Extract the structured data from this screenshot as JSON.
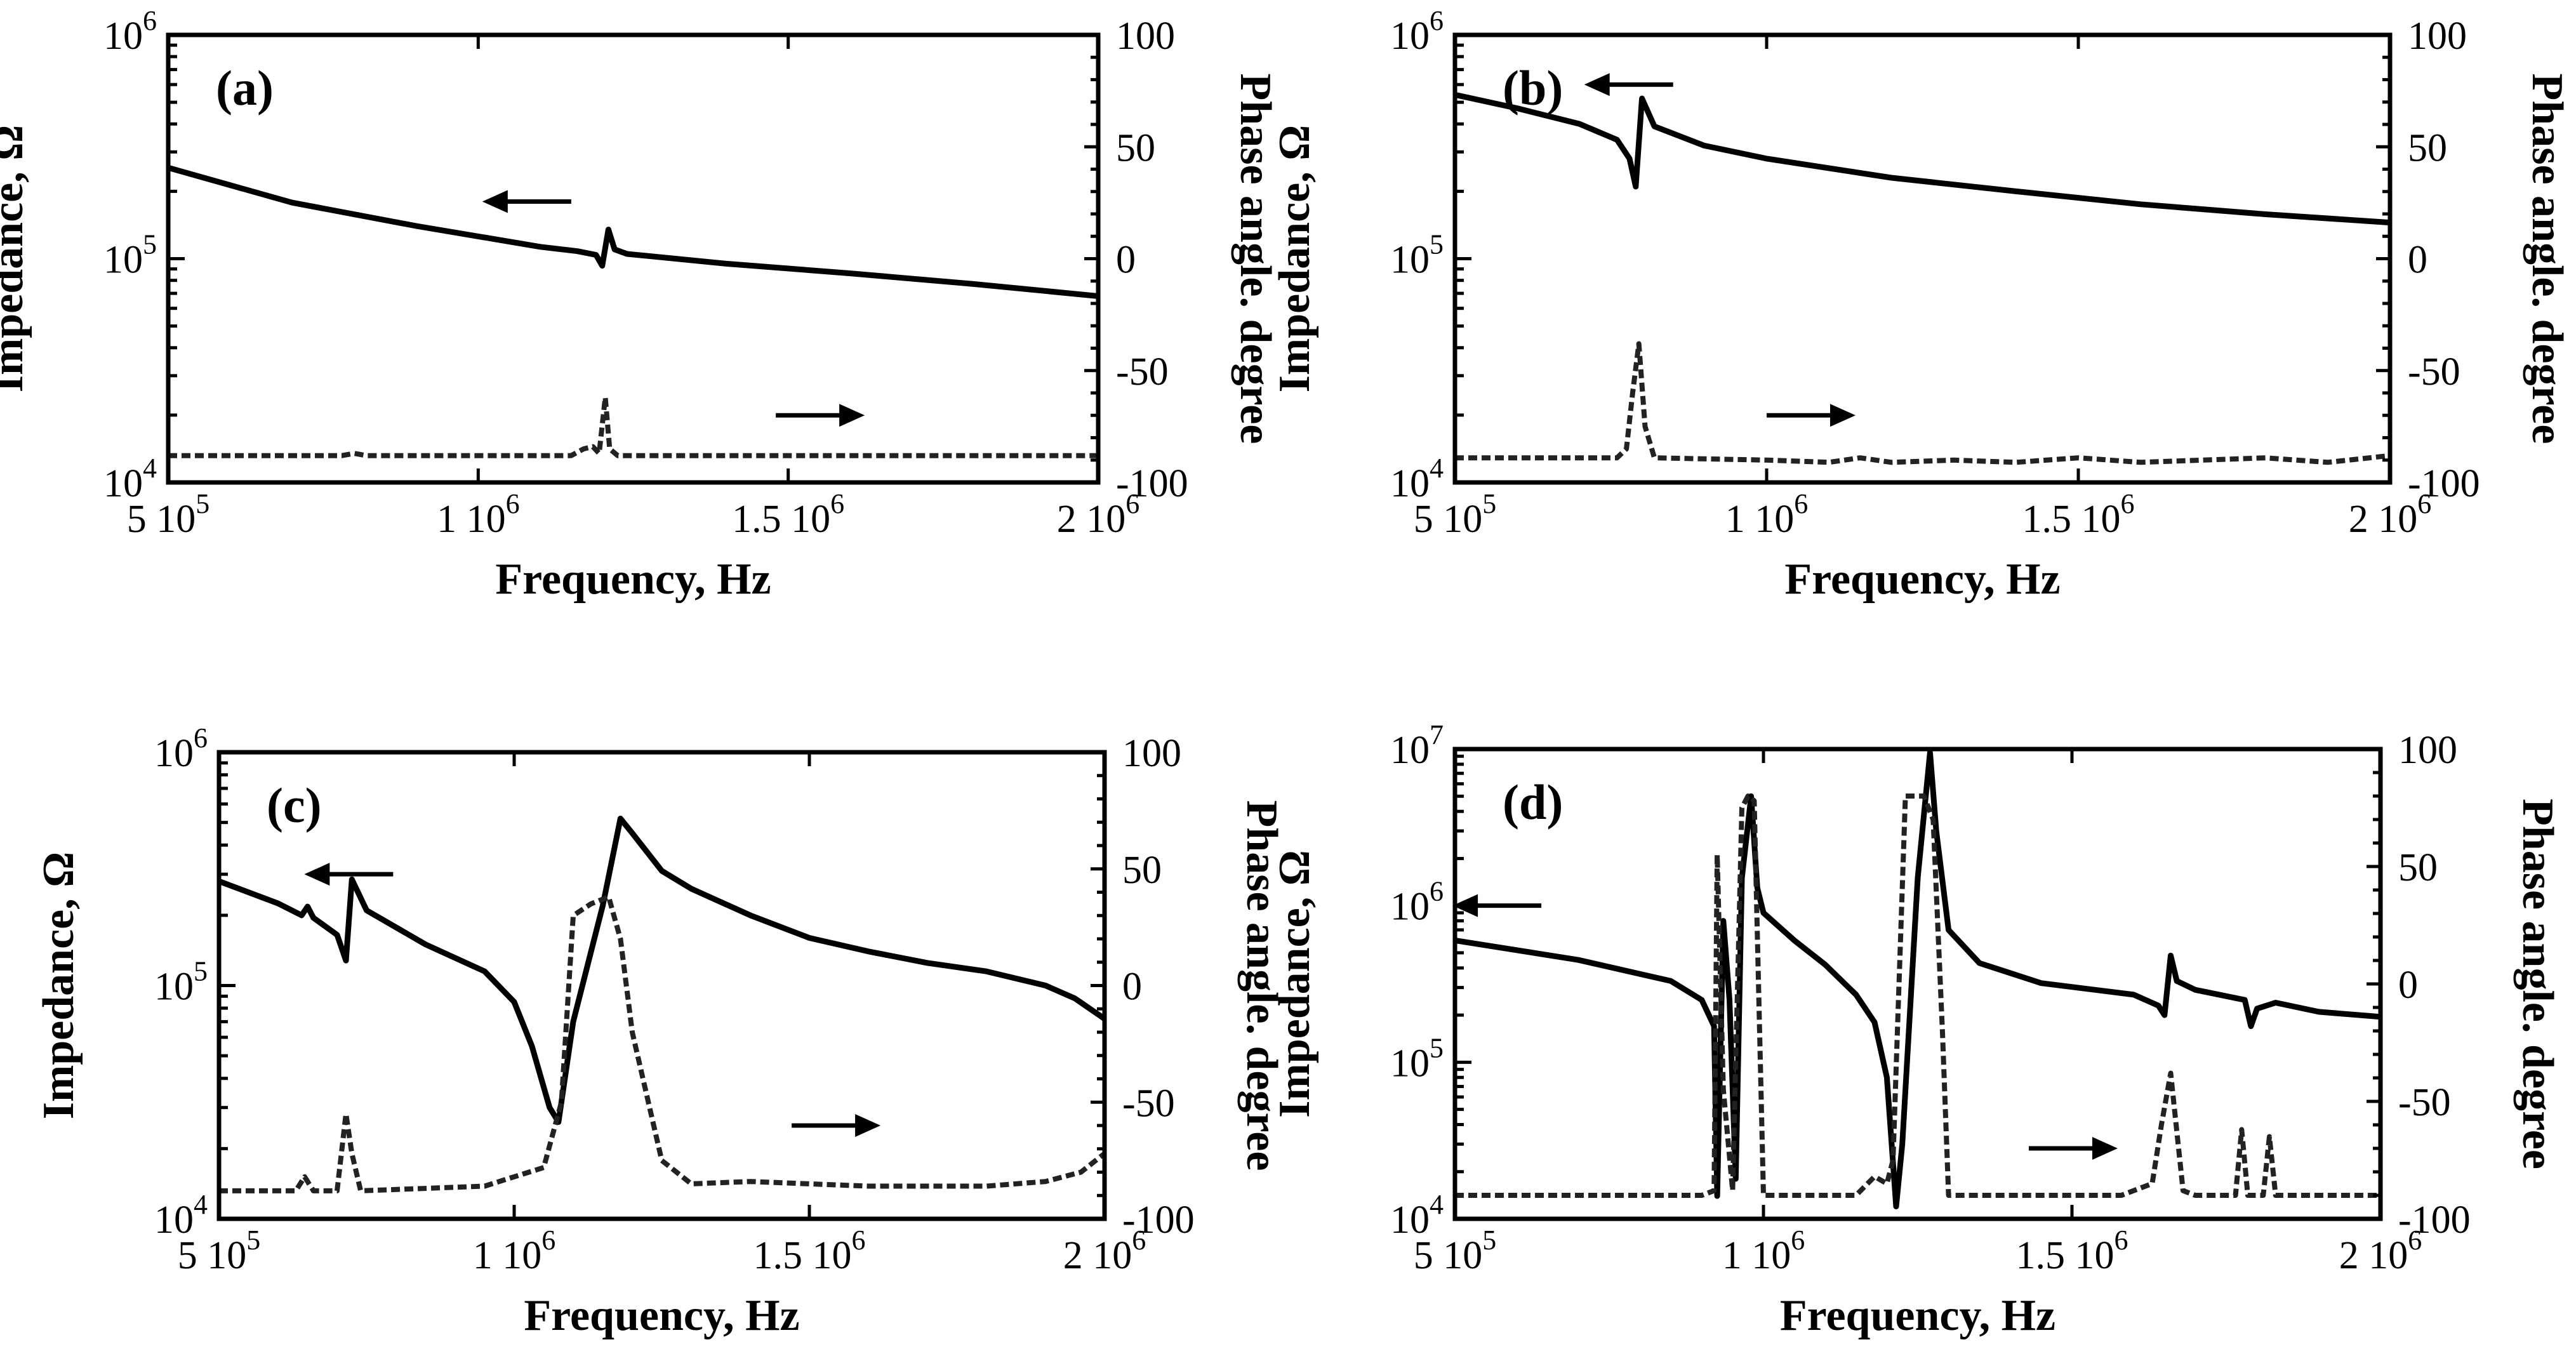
{
  "chart_data": [
    {
      "id": "a",
      "type": "line",
      "panel_label": "(a)",
      "xlabel": "Frequency, Hz",
      "ylabel": "Impedance, Ω",
      "y2label": "Phase angle. degree",
      "xlim": [
        500000,
        2000000
      ],
      "ylim": [
        10000,
        1000000
      ],
      "yscale": "log",
      "y2lim": [
        -100,
        100
      ],
      "xticks": [
        {
          "v": 500000,
          "m": "5 10",
          "e": "5"
        },
        {
          "v": 1000000,
          "m": "1 10",
          "e": "6"
        },
        {
          "v": 1500000,
          "m": "1.5 10",
          "e": "6"
        },
        {
          "v": 2000000,
          "m": "2 10",
          "e": "6"
        }
      ],
      "yticks": [
        {
          "v": 10000,
          "m": "10",
          "e": "4"
        },
        {
          "v": 100000,
          "m": "10",
          "e": "5"
        },
        {
          "v": 1000000,
          "m": "10",
          "e": "6"
        }
      ],
      "y2ticks": [
        {
          "v": -100,
          "label": "-100"
        },
        {
          "v": -50,
          "label": "-50"
        },
        {
          "v": 0,
          "label": "0"
        },
        {
          "v": 50,
          "label": "50"
        },
        {
          "v": 100,
          "label": "100"
        }
      ],
      "series": [
        {
          "name": "Impedance",
          "axis": "left",
          "style": "solid",
          "x": [
            500000,
            700000,
            900000,
            1100000,
            1160000,
            1190000,
            1200000,
            1210000,
            1220000,
            1240000,
            1400000,
            1600000,
            1800000,
            2000000
          ],
          "y": [
            255000,
            178000,
            140000,
            113000,
            108000,
            104000,
            93000,
            135000,
            110000,
            105000,
            95000,
            86000,
            77000,
            68000
          ]
        },
        {
          "name": "Phase angle",
          "axis": "right",
          "style": "dashed",
          "x": [
            500000,
            780000,
            800000,
            820000,
            1150000,
            1170000,
            1185000,
            1195000,
            1205000,
            1212000,
            1225000,
            1400000,
            1650000,
            2000000
          ],
          "y": [
            -88,
            -88,
            -87,
            -88,
            -88,
            -85,
            -84,
            -87,
            -62,
            -85,
            -88,
            -88,
            -88,
            -88
          ]
        }
      ],
      "arrows": [
        {
          "dir": "left",
          "x": 1150000,
          "axis": "left",
          "y": 180000
        },
        {
          "dir": "right",
          "x": 1480000,
          "axis": "right",
          "y": -70
        }
      ]
    },
    {
      "id": "b",
      "type": "line",
      "panel_label": "(b)",
      "xlabel": "Frequency, Hz",
      "ylabel": "Impedance, Ω",
      "y2label": "Phase angle. degree",
      "xlim": [
        500000,
        2000000
      ],
      "ylim": [
        10000,
        1000000
      ],
      "yscale": "log",
      "y2lim": [
        -100,
        100
      ],
      "xticks": [
        {
          "v": 500000,
          "m": "5 10",
          "e": "5"
        },
        {
          "v": 1000000,
          "m": "1 10",
          "e": "6"
        },
        {
          "v": 1500000,
          "m": "1.5 10",
          "e": "6"
        },
        {
          "v": 2000000,
          "m": "2 10",
          "e": "6"
        }
      ],
      "yticks": [
        {
          "v": 10000,
          "m": "10",
          "e": "4"
        },
        {
          "v": 100000,
          "m": "10",
          "e": "5"
        },
        {
          "v": 1000000,
          "m": "10",
          "e": "6"
        }
      ],
      "y2ticks": [
        {
          "v": -100,
          "label": "-100"
        },
        {
          "v": -50,
          "label": "-50"
        },
        {
          "v": 0,
          "label": "0"
        },
        {
          "v": 50,
          "label": "50"
        },
        {
          "v": 100,
          "label": "100"
        }
      ],
      "series": [
        {
          "name": "Impedance",
          "axis": "left",
          "style": "solid",
          "x": [
            500000,
            600000,
            700000,
            760000,
            780000,
            790000,
            800000,
            820000,
            900000,
            1000000,
            1200000,
            1400000,
            1600000,
            1800000,
            2000000
          ],
          "y": [
            540000,
            470000,
            400000,
            340000,
            280000,
            210000,
            520000,
            390000,
            320000,
            280000,
            230000,
            200000,
            175000,
            158000,
            145000
          ]
        },
        {
          "name": "Phase angle",
          "axis": "right",
          "style": "dashed",
          "x": [
            500000,
            760000,
            775000,
            785000,
            795000,
            805000,
            820000,
            1000000,
            1100000,
            1150000,
            1200000,
            1300000,
            1400000,
            1500000,
            1600000,
            1700000,
            1800000,
            1900000,
            2000000
          ],
          "y": [
            -89,
            -89,
            -85,
            -60,
            -38,
            -75,
            -89,
            -90,
            -91,
            -89,
            -91,
            -90,
            -91,
            -89,
            -91,
            -90,
            -89,
            -91,
            -88
          ]
        }
      ],
      "arrows": [
        {
          "dir": "left",
          "x": 850000,
          "axis": "left",
          "y": 600000
        },
        {
          "dir": "right",
          "x": 1000000,
          "axis": "right",
          "y": -70
        }
      ]
    },
    {
      "id": "c",
      "type": "line",
      "panel_label": "(c)",
      "xlabel": "Frequency, Hz",
      "ylabel": "Impedance, Ω",
      "y2label": "Phase angle. degree",
      "xlim": [
        500000,
        2000000
      ],
      "ylim": [
        10000,
        1000000
      ],
      "yscale": "log",
      "y2lim": [
        -100,
        100
      ],
      "xticks": [
        {
          "v": 500000,
          "m": "5 10",
          "e": "5"
        },
        {
          "v": 1000000,
          "m": "1 10",
          "e": "6"
        },
        {
          "v": 1500000,
          "m": "1.5 10",
          "e": "6"
        },
        {
          "v": 2000000,
          "m": "2 10",
          "e": "6"
        }
      ],
      "yticks": [
        {
          "v": 10000,
          "m": "10",
          "e": "4"
        },
        {
          "v": 100000,
          "m": "10",
          "e": "5"
        },
        {
          "v": 1000000,
          "m": "10",
          "e": "6"
        }
      ],
      "y2ticks": [
        {
          "v": -100,
          "label": "-100"
        },
        {
          "v": -50,
          "label": "-50"
        },
        {
          "v": 0,
          "label": "0"
        },
        {
          "v": 50,
          "label": "50"
        },
        {
          "v": 100,
          "label": "100"
        }
      ],
      "series": [
        {
          "name": "Impedance",
          "axis": "left",
          "style": "solid",
          "x": [
            500000,
            600000,
            640000,
            650000,
            660000,
            700000,
            715000,
            725000,
            750000,
            850000,
            950000,
            1000000,
            1030000,
            1060000,
            1075000,
            1100000,
            1150000,
            1180000,
            1200000,
            1250000,
            1300000,
            1400000,
            1500000,
            1600000,
            1700000,
            1800000,
            1900000,
            1950000,
            2000000
          ],
          "y": [
            280000,
            225000,
            200000,
            218000,
            195000,
            165000,
            128000,
            285000,
            210000,
            150000,
            115000,
            85000,
            55000,
            30000,
            26000,
            70000,
            220000,
            520000,
            450000,
            310000,
            260000,
            200000,
            160000,
            140000,
            125000,
            115000,
            100000,
            88000,
            72000
          ]
        },
        {
          "name": "Phase angle",
          "axis": "right",
          "style": "dashed",
          "x": [
            500000,
            630000,
            645000,
            660000,
            700000,
            715000,
            725000,
            740000,
            950000,
            1000000,
            1050000,
            1080000,
            1100000,
            1130000,
            1160000,
            1180000,
            1200000,
            1250000,
            1300000,
            1400000,
            1500000,
            1600000,
            1800000,
            1900000,
            1960000,
            2000000
          ],
          "y": [
            -88,
            -88,
            -82,
            -88,
            -88,
            -55,
            -72,
            -88,
            -86,
            -82,
            -78,
            -50,
            30,
            35,
            38,
            20,
            -20,
            -75,
            -85,
            -84,
            -85,
            -86,
            -86,
            -84,
            -80,
            -72
          ]
        }
      ],
      "arrows": [
        {
          "dir": "left",
          "x": 795000,
          "axis": "left",
          "y": 300000
        },
        {
          "dir": "right",
          "x": 1470000,
          "axis": "right",
          "y": -60
        }
      ]
    },
    {
      "id": "d",
      "type": "line",
      "panel_label": "(d)",
      "xlabel": "Frequency, Hz",
      "ylabel": "Impedance, Ω",
      "y2label": "Phase angle. degree",
      "xlim": [
        500000,
        2000000
      ],
      "ylim": [
        10000,
        10000000
      ],
      "yscale": "log",
      "y2lim": [
        -100,
        100
      ],
      "xticks": [
        {
          "v": 500000,
          "m": "5 10",
          "e": "5"
        },
        {
          "v": 1000000,
          "m": "1 10",
          "e": "6"
        },
        {
          "v": 1500000,
          "m": "1.5 10",
          "e": "6"
        },
        {
          "v": 2000000,
          "m": "2 10",
          "e": "6"
        }
      ],
      "yticks": [
        {
          "v": 10000,
          "m": "10",
          "e": "4"
        },
        {
          "v": 100000,
          "m": "10",
          "e": "5"
        },
        {
          "v": 1000000,
          "m": "10",
          "e": "6"
        },
        {
          "v": 10000000,
          "m": "10",
          "e": "7"
        }
      ],
      "y2ticks": [
        {
          "v": -100,
          "label": "-100"
        },
        {
          "v": -50,
          "label": "-50"
        },
        {
          "v": 0,
          "label": "0"
        },
        {
          "v": 50,
          "label": "50"
        },
        {
          "v": 100,
          "label": "100"
        }
      ],
      "series": [
        {
          "name": "Impedance",
          "axis": "left",
          "style": "solid",
          "x": [
            500000,
            700000,
            850000,
            900000,
            920000,
            925000,
            935000,
            945000,
            955000,
            965000,
            980000,
            990000,
            1000000,
            1050000,
            1100000,
            1150000,
            1180000,
            1200000,
            1215000,
            1225000,
            1250000,
            1270000,
            1280000,
            1300000,
            1350000,
            1450000,
            1600000,
            1640000,
            1650000,
            1660000,
            1670000,
            1700000,
            1780000,
            1790000,
            1800000,
            1830000,
            1900000,
            2000000
          ],
          "y": [
            600000,
            450000,
            330000,
            250000,
            170000,
            14000,
            800000,
            250000,
            18000,
            1500000,
            5000000,
            1300000,
            900000,
            600000,
            420000,
            270000,
            180000,
            80000,
            12000,
            30000,
            1500000,
            9500000,
            3000000,
            700000,
            430000,
            320000,
            270000,
            230000,
            200000,
            480000,
            330000,
            290000,
            250000,
            170000,
            220000,
            240000,
            210000,
            195000
          ]
        },
        {
          "name": "Phase angle",
          "axis": "right",
          "style": "dashed",
          "x": [
            500000,
            900000,
            920000,
            925000,
            935000,
            950000,
            965000,
            975000,
            985000,
            1000000,
            1150000,
            1180000,
            1200000,
            1210000,
            1230000,
            1260000,
            1275000,
            1290000,
            1300000,
            1580000,
            1630000,
            1645000,
            1660000,
            1680000,
            1700000,
            1765000,
            1775000,
            1785000,
            1810000,
            1820000,
            1830000,
            1900000,
            2000000
          ],
          "y": [
            -90,
            -90,
            -88,
            55,
            -45,
            -88,
            75,
            80,
            78,
            -90,
            -90,
            -82,
            -85,
            -75,
            80,
            80,
            70,
            -20,
            -90,
            -90,
            -85,
            -60,
            -38,
            -88,
            -90,
            -90,
            -62,
            -90,
            -90,
            -65,
            -90,
            -90,
            -90
          ]
        }
      ],
      "arrows": [
        {
          "dir": "left",
          "x": 640000,
          "axis": "left",
          "y": 1000000
        },
        {
          "dir": "right",
          "x": 1430000,
          "axis": "right",
          "y": -70
        }
      ]
    }
  ]
}
